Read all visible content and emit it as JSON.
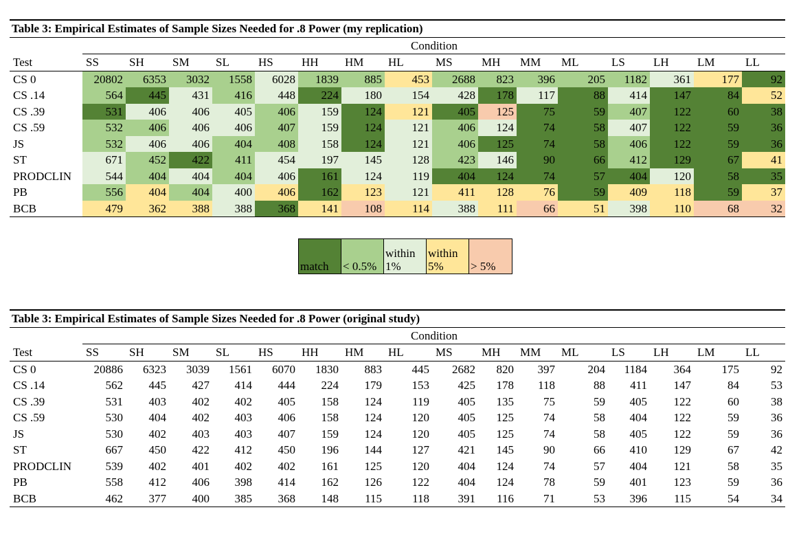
{
  "table1": {
    "title": "Table 3: Empirical Estimates of Sample Sizes Needed for .8 Power (my replication)",
    "condition_label": "Condition",
    "columns": [
      "Test",
      "SS",
      "SH",
      "SM",
      "SL",
      "HS",
      "HH",
      "HM",
      "HL",
      "MS",
      "MH",
      "MM",
      "ML",
      "LS",
      "LH",
      "LM",
      "LL"
    ],
    "rows": [
      [
        "CS 0",
        20802,
        6353,
        3032,
        1558,
        6028,
        1839,
        885,
        453,
        2688,
        823,
        396,
        205,
        1182,
        361,
        177,
        92
      ],
      [
        "CS .14",
        564,
        445,
        431,
        416,
        448,
        224,
        180,
        154,
        428,
        178,
        117,
        88,
        414,
        147,
        84,
        52
      ],
      [
        "CS .39",
        531,
        406,
        406,
        405,
        406,
        159,
        124,
        121,
        405,
        125,
        75,
        59,
        407,
        122,
        60,
        38
      ],
      [
        "CS .59",
        532,
        406,
        406,
        406,
        407,
        159,
        124,
        121,
        406,
        124,
        74,
        58,
        407,
        122,
        59,
        36
      ],
      [
        "JS",
        532,
        406,
        406,
        404,
        408,
        158,
        124,
        121,
        406,
        125,
        74,
        58,
        406,
        122,
        59,
        36
      ],
      [
        "ST",
        671,
        452,
        422,
        411,
        454,
        197,
        145,
        128,
        423,
        146,
        90,
        66,
        412,
        129,
        67,
        41
      ],
      [
        "PRODCLIN",
        544,
        404,
        404,
        404,
        406,
        161,
        124,
        119,
        404,
        124,
        74,
        57,
        404,
        120,
        58,
        35
      ],
      [
        "PB",
        556,
        404,
        404,
        400,
        406,
        162,
        123,
        121,
        411,
        128,
        76,
        59,
        409,
        118,
        59,
        37
      ],
      [
        "BCB",
        479,
        362,
        388,
        388,
        368,
        141,
        108,
        114,
        388,
        111,
        66,
        51,
        398,
        110,
        68,
        32
      ]
    ],
    "fills": [
      [
        1,
        1,
        1,
        1,
        2,
        1,
        1,
        3,
        1,
        1,
        1,
        1,
        1,
        2,
        3,
        0
      ],
      [
        1,
        0,
        2,
        1,
        2,
        0,
        2,
        2,
        2,
        0,
        2,
        0,
        2,
        0,
        0,
        3
      ],
      [
        0,
        2,
        2,
        2,
        1,
        2,
        0,
        3,
        0,
        4,
        0,
        0,
        1,
        0,
        0,
        0
      ],
      [
        1,
        1,
        2,
        2,
        1,
        2,
        0,
        2,
        1,
        2,
        0,
        0,
        2,
        0,
        0,
        0
      ],
      [
        1,
        2,
        2,
        1,
        1,
        2,
        0,
        2,
        1,
        0,
        0,
        0,
        1,
        0,
        0,
        0
      ],
      [
        2,
        1,
        0,
        1,
        2,
        2,
        2,
        2,
        1,
        2,
        0,
        0,
        1,
        0,
        0,
        3
      ],
      [
        2,
        1,
        2,
        1,
        2,
        0,
        2,
        2,
        0,
        0,
        0,
        0,
        0,
        2,
        0,
        0
      ],
      [
        1,
        3,
        1,
        2,
        3,
        0,
        3,
        2,
        3,
        3,
        3,
        0,
        3,
        3,
        0,
        3
      ],
      [
        3,
        3,
        3,
        2,
        0,
        3,
        4,
        3,
        2,
        3,
        4,
        3,
        2,
        3,
        4,
        4
      ]
    ]
  },
  "legend": [
    {
      "label": "match",
      "color": "#548235"
    },
    {
      "label": "< 0.5%",
      "color": "#a9d08e"
    },
    {
      "label": "within 1%",
      "color": "#e2efda"
    },
    {
      "label": "within 5%",
      "color": "#ffe699"
    },
    {
      "label": "> 5%",
      "color": "#f8cbad"
    }
  ],
  "table2": {
    "title": "Table 3: Empirical Estimates of Sample Sizes Needed for .8 Power (original study)",
    "condition_label": "Condition",
    "columns": [
      "Test",
      "SS",
      "SH",
      "SM",
      "SL",
      "HS",
      "HH",
      "HM",
      "HL",
      "MS",
      "MH",
      "MM",
      "ML",
      "LS",
      "LH",
      "LM",
      "LL"
    ],
    "rows": [
      [
        "CS 0",
        20886,
        6323,
        3039,
        1561,
        6070,
        1830,
        883,
        445,
        2682,
        820,
        397,
        204,
        1184,
        364,
        175,
        92
      ],
      [
        "CS .14",
        562,
        445,
        427,
        414,
        444,
        224,
        179,
        153,
        425,
        178,
        118,
        88,
        411,
        147,
        84,
        53
      ],
      [
        "CS .39",
        531,
        403,
        402,
        402,
        405,
        158,
        124,
        119,
        405,
        135,
        75,
        59,
        405,
        122,
        60,
        38
      ],
      [
        "CS .59",
        530,
        404,
        402,
        403,
        406,
        158,
        124,
        120,
        405,
        125,
        74,
        58,
        404,
        122,
        59,
        36
      ],
      [
        "JS",
        530,
        402,
        403,
        403,
        407,
        159,
        124,
        120,
        405,
        125,
        74,
        58,
        405,
        122,
        59,
        36
      ],
      [
        "ST",
        667,
        450,
        422,
        412,
        450,
        196,
        144,
        127,
        421,
        145,
        90,
        66,
        410,
        129,
        67,
        42
      ],
      [
        "PRODCLIN",
        539,
        402,
        401,
        402,
        402,
        161,
        125,
        120,
        404,
        124,
        74,
        57,
        404,
        121,
        58,
        35
      ],
      [
        "PB",
        558,
        412,
        406,
        398,
        414,
        162,
        126,
        122,
        404,
        124,
        78,
        59,
        401,
        123,
        59,
        36
      ],
      [
        "BCB",
        462,
        377,
        400,
        385,
        368,
        148,
        115,
        118,
        391,
        116,
        71,
        53,
        396,
        115,
        54,
        34
      ]
    ]
  }
}
